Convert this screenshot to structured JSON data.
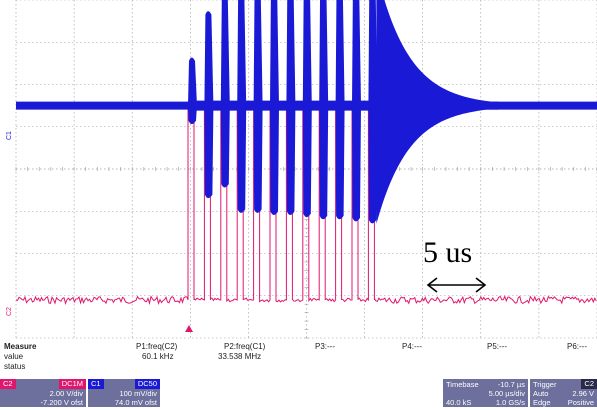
{
  "annotation": {
    "text": "5 us"
  },
  "channel_markers": {
    "c1": "C1",
    "c2": "C2"
  },
  "colors": {
    "ch1_trace": "#1a1ad6",
    "ch2_trace": "#e0166e",
    "grid": "#9a9a9a",
    "panel_bg": "#6d6f9c",
    "ch2_tag": "#e0166e",
    "ch1_tag": "#1a1ad6"
  },
  "measure": {
    "header": "Measure",
    "row_labels": [
      "value",
      "status"
    ],
    "params": [
      {
        "name": "P1:freq(C2)",
        "value": "60.1 kHz",
        "status": ""
      },
      {
        "name": "P2:freq(C1)",
        "value": "33.538 MHz",
        "status": ""
      },
      {
        "name": "P3:---",
        "value": "",
        "status": ""
      },
      {
        "name": "P4:---",
        "value": "",
        "status": ""
      },
      {
        "name": "P5:---",
        "value": "",
        "status": ""
      },
      {
        "name": "P6:---",
        "value": "",
        "status": ""
      }
    ]
  },
  "channels": [
    {
      "tag": "C2",
      "badge": "DC1M",
      "line1": "2.00 V/div",
      "line2": "-7.200 V ofst"
    },
    {
      "tag": "C1",
      "badge": "DC50",
      "line1": "100 mV/div",
      "line2": "74.0 mV ofst"
    }
  ],
  "timebase": {
    "label": "Timebase",
    "delay": "-10.7 µs",
    "line1": "5.00 µs/div",
    "line2_left": "40.0 kS",
    "line2_right": "1.0 GS/s"
  },
  "trigger": {
    "label": "Trigger",
    "badge": "C2",
    "mode": "Auto",
    "mode2": "Edge",
    "level": "2.96 V",
    "slope": "Positive"
  },
  "chart_data": {
    "type": "line",
    "title": "",
    "xlabel": "",
    "ylabel": "",
    "x_divisions": 10,
    "y_divisions": 8,
    "timebase": "5.00 µs/div",
    "series": [
      {
        "name": "C1",
        "color": "#1a1ad6",
        "baseline_div": 2.5,
        "burst_peak_heights_div": [
          1.15,
          2.25,
          2.65,
          2.9,
          2.95,
          3.05,
          3.1,
          3.15,
          3.15,
          3.15,
          3.15,
          3.2
        ],
        "burst_negative_depth_div": [
          0.45,
          2.2,
          1.95,
          2.55,
          2.55,
          2.6,
          2.6,
          2.65,
          2.7,
          2.7,
          2.75,
          2.8
        ],
        "ringdown_time_constant_us": 2.8
      },
      {
        "name": "C2",
        "color": "#e0166e",
        "low_level_div": 7.1,
        "high_level_div": 2.5,
        "pulse_count": 12
      }
    ]
  }
}
